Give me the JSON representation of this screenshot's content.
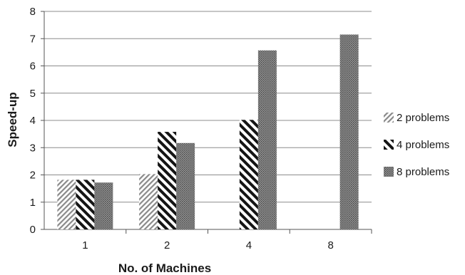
{
  "chart_data": {
    "type": "bar",
    "title": "",
    "xlabel": "No. of Machines",
    "ylabel": "Speed-up",
    "categories": [
      "1",
      "2",
      "4",
      "8"
    ],
    "ylim": [
      0,
      8
    ],
    "yticks": [
      0,
      1,
      2,
      3,
      4,
      5,
      6,
      7,
      8
    ],
    "grid": true,
    "legend_position": "right",
    "series": [
      {
        "name": "2 problems",
        "values": [
          1.82,
          2.03,
          0,
          0
        ],
        "pattern": "fine-diagonal-stripes",
        "color": "#7a7a7a"
      },
      {
        "name": "4 problems",
        "values": [
          1.82,
          3.58,
          4.02,
          0
        ],
        "pattern": "bold-diagonal-stripes",
        "color": "#1a1a1a"
      },
      {
        "name": "8 problems",
        "values": [
          1.72,
          3.17,
          6.57,
          7.15
        ],
        "pattern": "dotted-grey",
        "color": "#6e6e6e"
      }
    ]
  }
}
